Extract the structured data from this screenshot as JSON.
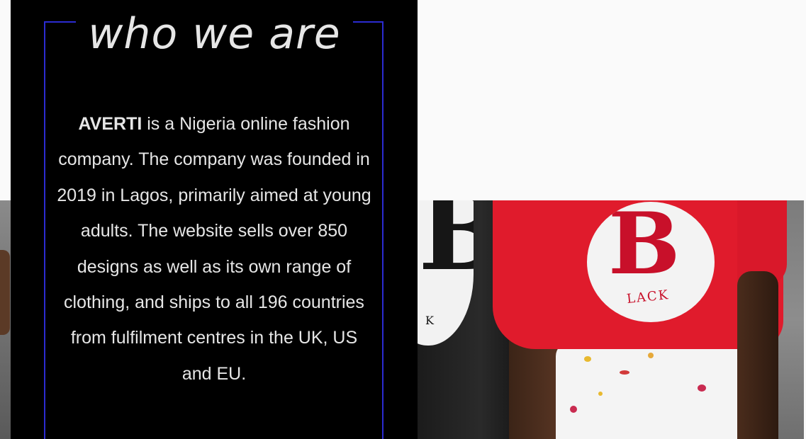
{
  "section": {
    "heading": "who we are",
    "brand": "AVERTI",
    "description": "is a Nigeria online fashion company. The company was founded in 2019 in Lagos, primarily aimed at young adults. The website sells over 850 designs as well as its own range of clothing, and ships to all 196 countries from fulfilment centres in the UK, US and EU."
  },
  "photo": {
    "shirt_letter": "B",
    "shirt_word": "LACK",
    "shirt_partial_letter": "K"
  },
  "colors": {
    "card_background": "#000000",
    "frame_accent": "#2b2bd1",
    "text": "#e6e6e6",
    "page_background": "#fafafa",
    "shirt_red": "#e01b2c"
  }
}
